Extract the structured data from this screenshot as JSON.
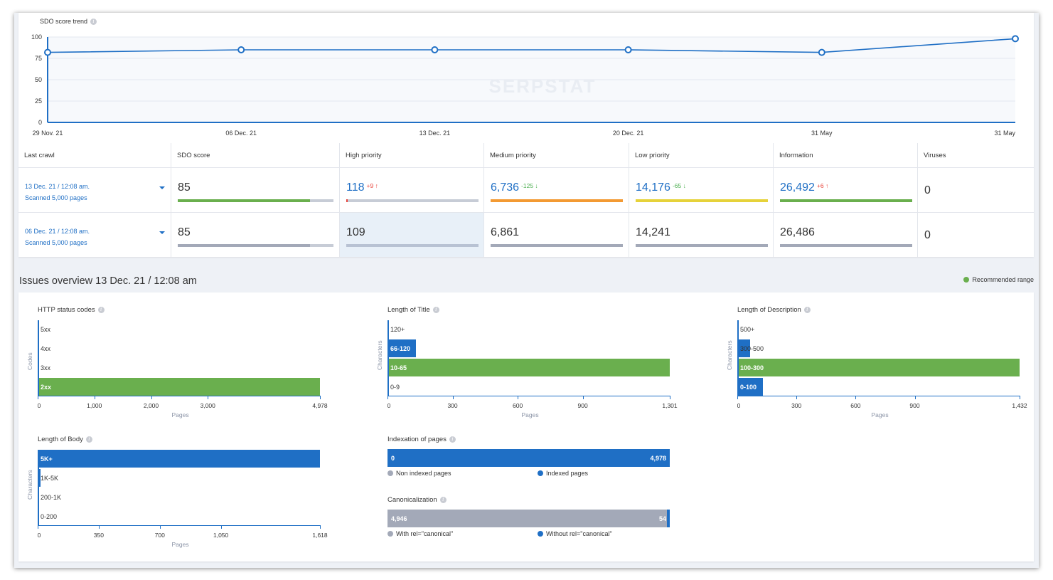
{
  "trend": {
    "title": "SDO score trend",
    "y_ticks": [
      "100",
      "75",
      "50",
      "25",
      "0"
    ],
    "x_labels": [
      "29 Nov. 21",
      "06 Dec. 21",
      "13 Dec. 21",
      "20 Dec. 21",
      "31 May",
      "31 May"
    ],
    "watermark": "SERPSTAT",
    "chart_data": {
      "type": "line",
      "title": "SDO score trend",
      "categories": [
        "29 Nov. 21",
        "06 Dec. 21",
        "13 Dec. 21",
        "20 Dec. 21",
        "31 May",
        "31 May"
      ],
      "series": [
        {
          "values": [
            82,
            85,
            85,
            85,
            82,
            98
          ]
        }
      ],
      "ylim": [
        0,
        100
      ],
      "grid": true
    }
  },
  "crawl_table": {
    "headers": [
      "Last crawl",
      "SDO score",
      "High priority",
      "Medium priority",
      "Low priority",
      "Information",
      "Viruses"
    ],
    "rows": [
      {
        "date": "13 Dec. 21 / 12:08 am.",
        "scanned": "Scanned 5,000 pages",
        "sdo": "85",
        "sdo_pct": 0.85,
        "high": "118",
        "high_delta": "+9",
        "high_pct": 0.01,
        "medium": "6,736",
        "medium_delta": "-125",
        "low": "14,176",
        "low_delta": "-65",
        "info": "26,492",
        "info_delta": "+6",
        "viruses": "0"
      },
      {
        "date": "06 Dec. 21 / 12:08 am.",
        "scanned": "Scanned 5,000 pages",
        "sdo": "85",
        "sdo_pct": 0.85,
        "high": "109",
        "medium": "6,861",
        "low": "14,241",
        "info": "26,486",
        "viruses": "0"
      }
    ]
  },
  "issues": {
    "title": "Issues overview 13 Dec. 21 / 12:08 am",
    "recommended": "Recommended range",
    "http": {
      "title": "HTTP status codes",
      "y_title": "Codes",
      "x_title": "Pages",
      "x_ticks": [
        "0",
        "1,000",
        "2,000",
        "3,000",
        "4,978"
      ],
      "chart_data": {
        "type": "bar",
        "categories": [
          "5xx",
          "4xx",
          "3xx",
          "2xx"
        ],
        "values": [
          0,
          0,
          0,
          4978
        ],
        "xlim": [
          0,
          4978
        ]
      }
    },
    "title_len": {
      "title": "Length of Title",
      "y_title": "Characters",
      "x_title": "Pages",
      "x_ticks": [
        "0",
        "300",
        "600",
        "900",
        "1,301"
      ],
      "chart_data": {
        "type": "bar",
        "categories": [
          "120+",
          "66-120",
          "10-65",
          "0-9"
        ],
        "values": [
          0,
          130,
          1301,
          0
        ],
        "xlim": [
          0,
          1301
        ]
      }
    },
    "desc_len": {
      "title": "Length of Description",
      "y_title": "Characters",
      "x_title": "Pages",
      "x_ticks": [
        "0",
        "300",
        "600",
        "900",
        "1,432"
      ],
      "chart_data": {
        "type": "bar",
        "categories": [
          "500+",
          "300-500",
          "100-300",
          "0-100"
        ],
        "values": [
          0,
          65,
          1432,
          130
        ],
        "xlim": [
          0,
          1432
        ]
      }
    },
    "body_len": {
      "title": "Length of Body",
      "y_title": "Characters",
      "x_title": "Pages",
      "x_ticks": [
        "0",
        "350",
        "700",
        "1,050",
        "1,618"
      ],
      "chart_data": {
        "type": "bar",
        "categories": [
          "5K+",
          "1K-5K",
          "200-1K",
          "0-200"
        ],
        "values": [
          1618,
          18,
          0,
          0
        ],
        "xlim": [
          0,
          1618
        ]
      }
    },
    "indexation": {
      "title": "Indexation of pages",
      "left_value": "0",
      "right_value": "4,978",
      "legend": [
        "Non indexed pages",
        "Indexed pages"
      ],
      "chart_data": {
        "type": "bar",
        "categories": [
          "Non indexed pages",
          "Indexed pages"
        ],
        "values": [
          0,
          4978
        ]
      }
    },
    "canonical": {
      "title": "Canonicalization",
      "left_value": "4,946",
      "right_value": "54",
      "legend": [
        "With rel=\"canonical\"",
        "Without rel=\"canonical\""
      ],
      "chart_data": {
        "type": "bar",
        "categories": [
          "With rel=\"canonical\"",
          "Without rel=\"canonical\""
        ],
        "values": [
          4946,
          54
        ]
      }
    }
  },
  "colors": {
    "blue": "#1f6fc5",
    "green": "#6aaf4e",
    "orange": "#f39a33",
    "yellow": "#e6d23a",
    "gray": "#a3a9b8",
    "red": "#e8453c"
  }
}
